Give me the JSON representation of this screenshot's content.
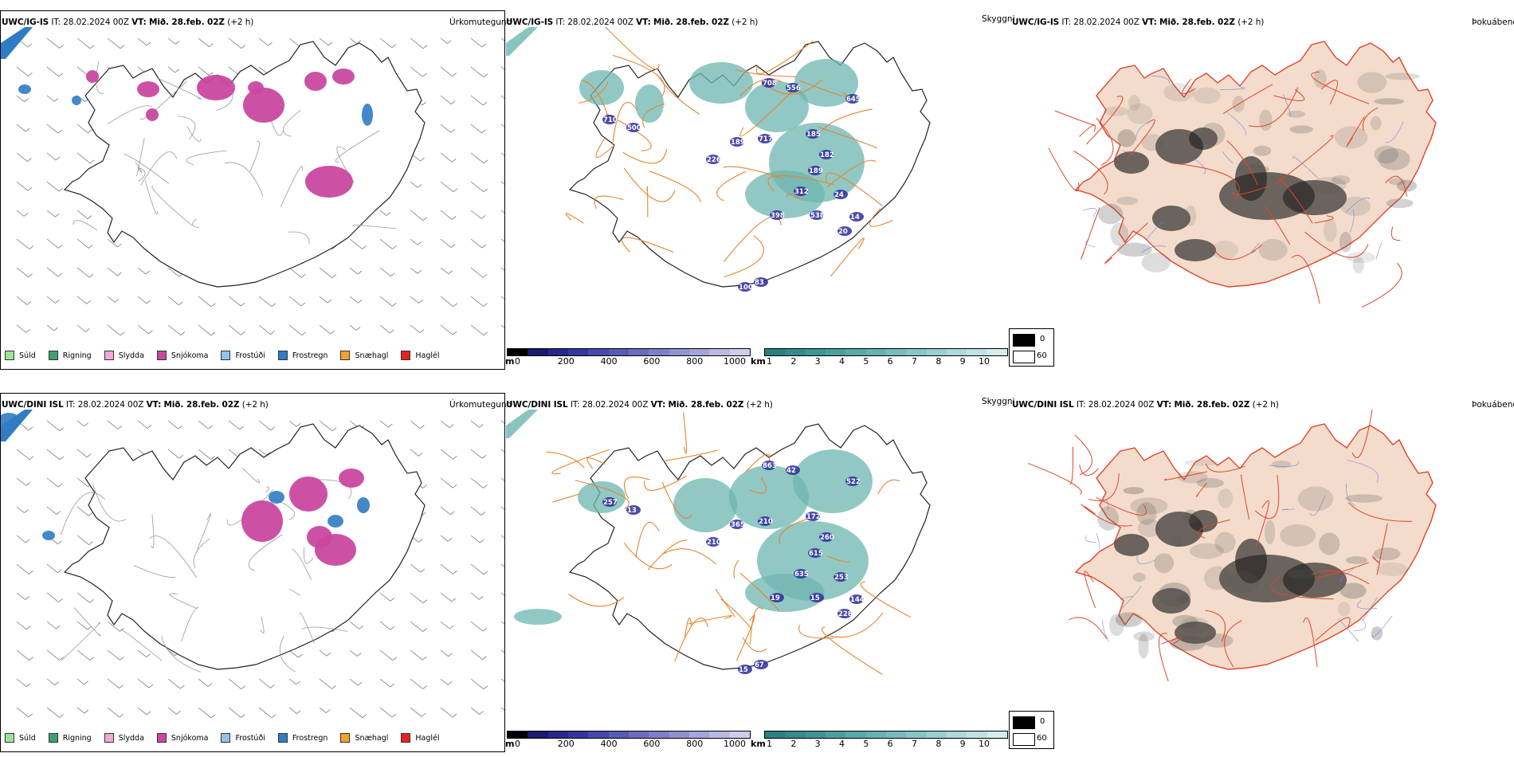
{
  "rows": [
    {
      "id": "top",
      "model": "UWC/IG-IS",
      "it_label": "IT:",
      "it_value": "28.02.2024 00Z",
      "vt_label": "VT:",
      "vt_value": "Mið. 28.feb. 02Z",
      "lead": "(+2 h)",
      "panels": {
        "precip_title": "Úrkomutegund",
        "cloud_title": "Skyggni",
        "fog_title": "Þokuábendi"
      },
      "cloud_labels": [
        "708",
        "556",
        "645",
        "710",
        "500",
        "189",
        "717",
        "226",
        "185",
        "182",
        "189",
        "312",
        "24",
        "398",
        "538",
        "14",
        "20",
        "100",
        "83"
      ]
    },
    {
      "id": "bottom",
      "model": "UWC/DINI ISL",
      "it_label": "IT:",
      "it_value": "28.02.2024 00Z",
      "vt_label": "VT:",
      "vt_value": "Mið. 28.feb. 02Z",
      "lead": "(+2 h)",
      "panels": {
        "precip_title": "Úrkomutegund",
        "cloud_title": "Skyggni",
        "fog_title": "Þokuábendi"
      },
      "cloud_labels": [
        "863",
        "42",
        "522",
        "257",
        "13",
        "365",
        "210",
        "210",
        "172",
        "260",
        "615",
        "635",
        "253",
        "19",
        "15",
        "144",
        "228",
        "15",
        "67"
      ]
    }
  ],
  "precip_legend": [
    {
      "label": "Súld",
      "color": "#99e699"
    },
    {
      "label": "Rigning",
      "color": "#3f9f6f"
    },
    {
      "label": "Slydda",
      "color": "#f0a8d8"
    },
    {
      "label": "Snjókoma",
      "color": "#c9489f"
    },
    {
      "label": "Frostúði",
      "color": "#8fc3ee"
    },
    {
      "label": "Frostregn",
      "color": "#2f7cc4"
    },
    {
      "label": "Snæhagl",
      "color": "#f2a12e"
    },
    {
      "label": "Haglél",
      "color": "#e8221f"
    }
  ],
  "cloudbase_scale": {
    "unit": "m",
    "ticks": [
      "0",
      "200",
      "400",
      "600",
      "800",
      "1000"
    ],
    "colors": [
      "#000000",
      "#1a1a6e",
      "#27278c",
      "#3636a0",
      "#4747ac",
      "#5959b6",
      "#6b6bc0",
      "#7e7ec9",
      "#9191d2",
      "#a5a5db",
      "#b9b9e4",
      "#cdcded"
    ]
  },
  "visibility_scale": {
    "unit": "km",
    "ticks": [
      "1",
      "2",
      "3",
      "4",
      "5",
      "6",
      "7",
      "8",
      "9",
      "10"
    ],
    "colors": [
      "#2a8080",
      "#348b8b",
      "#3f9595",
      "#4b9f9f",
      "#58a9a9",
      "#66b2b2",
      "#76bcbc",
      "#87c6c6",
      "#99d0d0",
      "#acd9d9",
      "#c0e3e3",
      "#d5eded"
    ]
  },
  "fog_legend": {
    "high_value": "0",
    "low_value": "60",
    "high_color": "#000000",
    "low_color": "#ffffff"
  },
  "colors": {
    "coast": "#222222",
    "roads_orange": "#e8842e",
    "roads_red": "#e0452c",
    "land_fog": "#f3dccb",
    "cloud_teal": "#6db5b0",
    "cloud_blue": "#2d2d9a",
    "snow": "#c9489f",
    "frost": "#2f7cc4"
  }
}
